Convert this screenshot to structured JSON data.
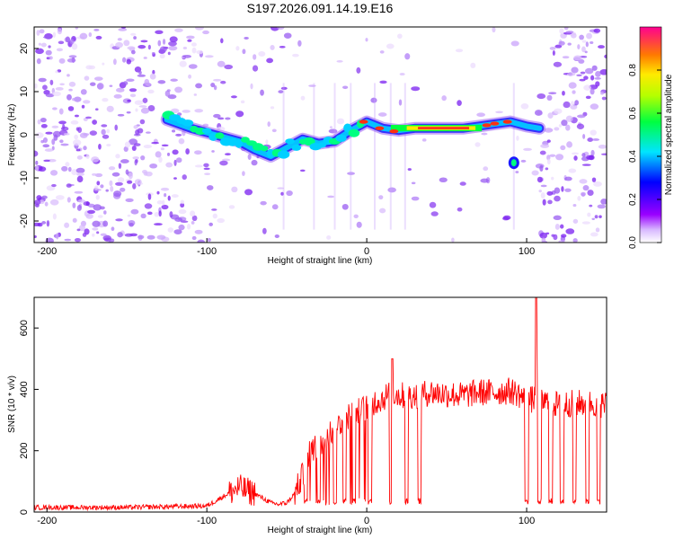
{
  "title": "S197.2026.091.14.19.E16",
  "chart_data": [
    {
      "type": "heatmap",
      "xlabel": "Height of straight line (km)",
      "ylabel": "Frequency (Hz)",
      "xlim": [
        -208,
        150
      ],
      "ylim": [
        -25,
        25
      ],
      "xticks": [
        "-200",
        "-100",
        "0",
        "100"
      ],
      "xtick_values": [
        -200,
        -100,
        0,
        100
      ],
      "yticks": [
        "-20",
        "-10",
        "0",
        "10",
        "20"
      ],
      "ytick_values": [
        -20,
        -10,
        0,
        10,
        20
      ],
      "colorbar": {
        "label": "Normalized spectral amplitude",
        "ticks": [
          "0.0",
          "0.2",
          "0.4",
          "0.6",
          "0.8"
        ],
        "tick_values": [
          0.0,
          0.2,
          0.4,
          0.6,
          0.8
        ],
        "range": [
          0.0,
          1.0
        ]
      },
      "ridge": {
        "name": "dominant frequency track",
        "x": [
          -125,
          -110,
          -100,
          -90,
          -80,
          -70,
          -60,
          -50,
          -40,
          -30,
          -20,
          -10,
          0,
          10,
          20,
          30,
          40,
          50,
          60,
          70,
          80,
          90,
          100,
          108
        ],
        "y": [
          3.5,
          1.5,
          0.5,
          -0.5,
          -1.5,
          -3.5,
          -5,
          -3,
          -1,
          -2,
          -1.5,
          1,
          3,
          1.5,
          1,
          1.5,
          1.5,
          1.5,
          1.5,
          2,
          2.5,
          3,
          2,
          1.5
        ]
      },
      "features": [
        {
          "name": "isolated blob",
          "x": 92,
          "y": -6.5
        }
      ]
    },
    {
      "type": "line",
      "xlabel": "Height of straight line (km)",
      "ylabel": "SNR (10 * v/v)",
      "xlim": [
        -208,
        150
      ],
      "ylim": [
        0,
        700
      ],
      "xticks": [
        "-200",
        "-100",
        "0",
        "100"
      ],
      "xtick_values": [
        -200,
        -100,
        0,
        100
      ],
      "yticks": [
        "0",
        "200",
        "400",
        "600"
      ],
      "ytick_values": [
        0,
        200,
        400,
        600
      ],
      "series": [
        {
          "name": "SNR",
          "color": "#ff0000",
          "x": [
            -208,
            -150,
            -100,
            -90,
            -80,
            -70,
            -60,
            -55,
            -50,
            -45,
            -40,
            -35,
            -30,
            -25,
            -20,
            -15,
            -10,
            -5,
            0,
            5,
            10,
            15,
            20,
            30,
            40,
            50,
            60,
            70,
            80,
            90,
            95,
            100,
            105,
            110,
            120,
            130,
            140,
            150
          ],
          "values": [
            15,
            15,
            20,
            50,
            80,
            60,
            30,
            25,
            30,
            60,
            120,
            200,
            220,
            250,
            270,
            300,
            320,
            330,
            340,
            360,
            370,
            390,
            380,
            380,
            390,
            385,
            380,
            390,
            390,
            395,
            385,
            360,
            370,
            360,
            350,
            355,
            355,
            350
          ],
          "dropouts": [
            -38,
            -30,
            -20,
            -14,
            -8,
            2,
            15,
            25,
            33,
            100,
            108,
            115,
            122,
            130,
            138,
            145
          ],
          "spikes": [
            {
              "x": 16,
              "y": 500
            },
            {
              "x": 106,
              "y": 700
            }
          ]
        }
      ]
    }
  ],
  "colors": {
    "trace": "#ff0000",
    "background_noise": "#a64dff"
  }
}
